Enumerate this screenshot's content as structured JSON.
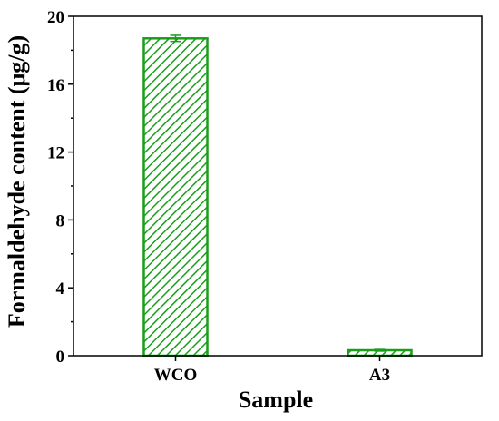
{
  "chart_data": {
    "type": "bar",
    "title": "",
    "xlabel": "Sample",
    "ylabel": "Formaldehyde content (μg/g)",
    "categories": [
      "WCO",
      "A3"
    ],
    "values": [
      18.7,
      0.32
    ],
    "errors": [
      0.18,
      0.05
    ],
    "ylim": [
      0,
      20
    ],
    "yticks": [
      0,
      4,
      8,
      12,
      16,
      20
    ],
    "grid": false,
    "legend": "none",
    "bar_color": "#1a9e1a",
    "bar_fill": "hatched"
  }
}
